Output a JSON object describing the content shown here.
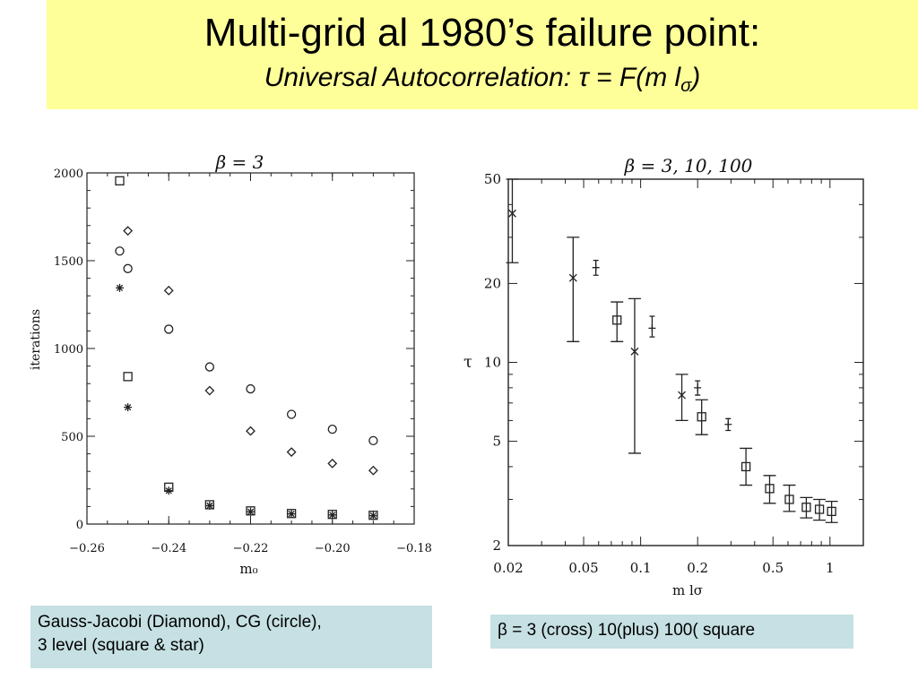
{
  "slide": {
    "title": "Multi-grid al 1980’s failure point:",
    "subtitle_prefix": "Universal Autocorrelation:",
    "subtitle_formula_main": "τ = F(m l",
    "subtitle_formula_sub": "σ",
    "subtitle_formula_end": ")"
  },
  "captions": {
    "left_line1": "Gauss-Jacobi (Diamond), CG (circle),",
    "left_line2": "3 level  (square & star)",
    "right": "β = 3 (cross) 10(plus) 100( square"
  },
  "chart_data": [
    {
      "type": "scatter",
      "title": "β = 3",
      "xlabel": "m₀",
      "ylabel": "iterations",
      "xlim": [
        -0.26,
        -0.18
      ],
      "ylim": [
        0,
        2000
      ],
      "x_ticks": [
        "−0.26",
        "−0.24",
        "−0.22",
        "−0.20",
        "−0.18"
      ],
      "y_ticks": [
        "0",
        "500",
        "1000",
        "1500",
        "2000"
      ],
      "series": [
        {
          "marker": "diamond",
          "points": [
            [
              -0.25,
              1670
            ],
            [
              -0.24,
              1330
            ],
            [
              -0.23,
              760
            ],
            [
              -0.22,
              530
            ],
            [
              -0.21,
              410
            ],
            [
              -0.2,
              345
            ],
            [
              -0.19,
              305
            ]
          ]
        },
        {
          "marker": "circle",
          "points": [
            [
              -0.252,
              1555
            ],
            [
              -0.25,
              1455
            ],
            [
              -0.24,
              1110
            ],
            [
              -0.23,
              895
            ],
            [
              -0.22,
              770
            ],
            [
              -0.21,
              625
            ],
            [
              -0.2,
              540
            ],
            [
              -0.19,
              475
            ]
          ]
        },
        {
          "marker": "square",
          "points": [
            [
              -0.252,
              1955
            ],
            [
              -0.25,
              840
            ],
            [
              -0.24,
              210
            ],
            [
              -0.23,
              110
            ],
            [
              -0.22,
              75
            ],
            [
              -0.21,
              60
            ],
            [
              -0.2,
              55
            ],
            [
              -0.19,
              50
            ]
          ]
        },
        {
          "marker": "star",
          "points": [
            [
              -0.252,
              1345
            ],
            [
              -0.25,
              665
            ],
            [
              -0.24,
              190
            ],
            [
              -0.23,
              105
            ],
            [
              -0.22,
              70
            ],
            [
              -0.21,
              58
            ],
            [
              -0.2,
              52
            ],
            [
              -0.19,
              48
            ]
          ]
        }
      ]
    },
    {
      "type": "scatter",
      "title": "β = 3, 10, 100",
      "xlabel": "m lσ",
      "ylabel": "τ",
      "xscale": "log",
      "yscale": "log",
      "xlim": [
        0.02,
        1.5
      ],
      "ylim": [
        2,
        50
      ],
      "x_ticks": [
        "0.02",
        "0.05",
        "0.1",
        "0.2",
        "0.5",
        "1"
      ],
      "y_ticks": [
        "2",
        "5",
        "10",
        "20",
        "50"
      ],
      "series": [
        {
          "marker": "cross",
          "points": [
            [
              0.021,
              37,
              24,
              50
            ],
            [
              0.044,
              21,
              12,
              30
            ],
            [
              0.093,
              11,
              4.5,
              17.5
            ],
            [
              0.165,
              7.5,
              6,
              9
            ]
          ]
        },
        {
          "marker": "plus",
          "points": [
            [
              0.058,
              23,
              21.5,
              24.5
            ],
            [
              0.115,
              13.5,
              12.5,
              15
            ],
            [
              0.2,
              8.0,
              7.5,
              8.5
            ],
            [
              0.29,
              5.8,
              5.5,
              6.1
            ]
          ]
        },
        {
          "marker": "square",
          "points": [
            [
              0.075,
              14.5,
              12,
              17
            ],
            [
              0.21,
              6.2,
              5.3,
              7.2
            ],
            [
              0.36,
              4.0,
              3.4,
              4.7
            ],
            [
              0.48,
              3.3,
              2.9,
              3.7
            ],
            [
              0.61,
              3.0,
              2.7,
              3.4
            ],
            [
              0.75,
              2.8,
              2.55,
              3.05
            ],
            [
              0.88,
              2.75,
              2.5,
              3.0
            ],
            [
              1.02,
              2.7,
              2.45,
              2.95
            ]
          ]
        }
      ]
    }
  ]
}
